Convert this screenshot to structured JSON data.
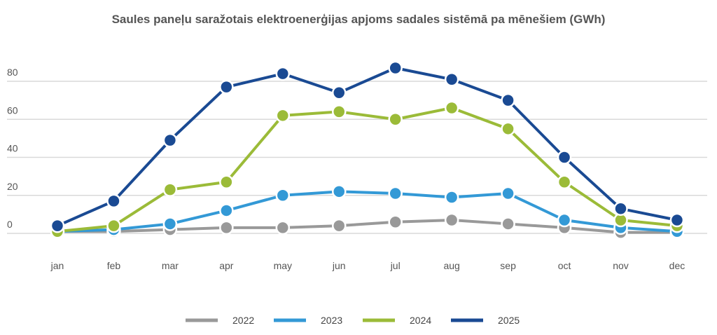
{
  "chart_data": {
    "type": "line",
    "title": "Saules paneļu saražotais elektroenerģijas apjoms sadales sistēmā pa mēnešiem (GWh)",
    "xlabel": "",
    "ylabel": "",
    "categories": [
      "jan",
      "feb",
      "mar",
      "apr",
      "may",
      "jun",
      "jul",
      "aug",
      "sep",
      "oct",
      "nov",
      "dec"
    ],
    "ylim": [
      0,
      80
    ],
    "yticks": [
      0,
      20,
      40,
      60,
      80
    ],
    "grid": true,
    "legend": "bottom",
    "series": [
      {
        "name": "2022",
        "color": "#999999",
        "values": [
          1,
          1,
          2,
          3,
          3,
          4,
          6,
          7,
          5,
          3,
          0.5,
          0.5
        ]
      },
      {
        "name": "2023",
        "color": "#3399d6",
        "values": [
          1,
          2,
          5,
          12,
          20,
          22,
          21,
          19,
          21,
          7,
          3,
          1
        ]
      },
      {
        "name": "2024",
        "color": "#9bbb38",
        "values": [
          1,
          4,
          23,
          27,
          62,
          64,
          60,
          66,
          55,
          27,
          7,
          4
        ]
      },
      {
        "name": "2025",
        "color": "#1a4a93",
        "values": [
          4,
          17,
          49,
          77,
          84,
          74,
          87,
          81,
          70,
          40,
          13,
          7
        ]
      }
    ]
  }
}
